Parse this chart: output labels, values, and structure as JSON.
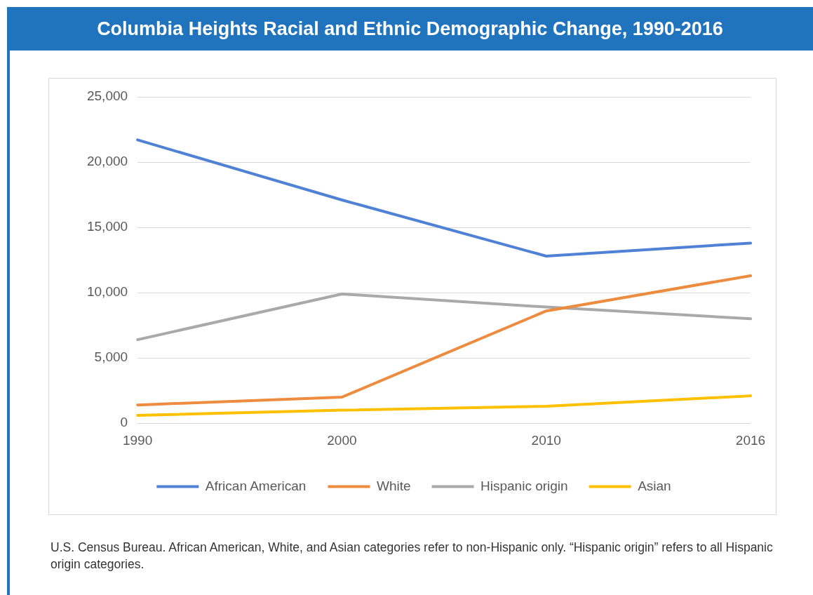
{
  "chart_data": {
    "type": "line",
    "title": "Columbia Heights Racial and Ethnic Demographic Change, 1990-2016",
    "categories": [
      "1990",
      "2000",
      "2010",
      "2016"
    ],
    "series": [
      {
        "name": "African American",
        "color": "#4f81d4",
        "values": [
          21700,
          17100,
          12800,
          13800
        ]
      },
      {
        "name": "White",
        "color": "#ed8b3f",
        "values": [
          1400,
          2000,
          8600,
          11300
        ]
      },
      {
        "name": "Hispanic origin",
        "color": "#a9a9a9",
        "values": [
          6400,
          9900,
          8900,
          8000
        ]
      },
      {
        "name": "Asian",
        "color": "#ffc000",
        "values": [
          600,
          1000,
          1300,
          2100
        ]
      }
    ],
    "ylim": [
      0,
      25000
    ],
    "yticks": [
      {
        "value": 0,
        "label": "0"
      },
      {
        "value": 5000,
        "label": "5,000"
      },
      {
        "value": 10000,
        "label": "10,000"
      },
      {
        "value": 15000,
        "label": "15,000"
      },
      {
        "value": 20000,
        "label": "20,000"
      },
      {
        "value": 25000,
        "label": "25,000"
      }
    ],
    "grid": "y",
    "legend": "bottom",
    "marker": "none",
    "line_style": "solid",
    "annotations": [
      "U.S. Census Bureau. African American, White, and Asian categories refer to non-Hispanic only. “Hispanic origin” refers to all Hispanic origin categories."
    ]
  }
}
